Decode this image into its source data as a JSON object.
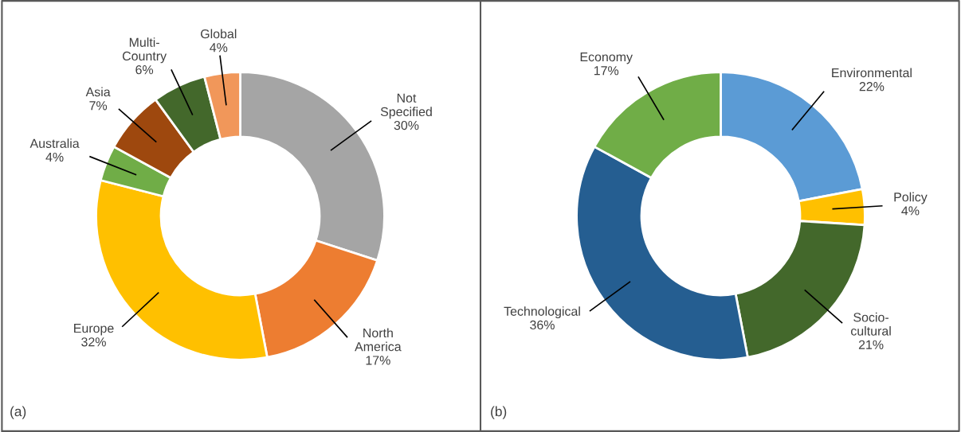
{
  "chart_data": [
    {
      "type": "donut",
      "categories": [
        "Not\nSpecified",
        "North\nAmerica",
        "Europe",
        "Australia",
        "Asia",
        "Multi-\nCountry",
        "Global"
      ],
      "values": [
        30,
        17,
        32,
        4,
        7,
        6,
        4
      ],
      "value_labels": [
        "30%",
        "17%",
        "32%",
        "4%",
        "7%",
        "6%",
        "4%"
      ],
      "colors": [
        "#a5a5a5",
        "#ed7d31",
        "#ffc000",
        "#70ad47",
        "#9e480e",
        "#43682b",
        "#f1975a"
      ],
      "annotations": [
        "(a)"
      ]
    },
    {
      "type": "donut",
      "categories": [
        "Environmental",
        "Policy",
        "Socio-\ncultural",
        "Technological",
        "Economy"
      ],
      "values": [
        22,
        4,
        21,
        36,
        17
      ],
      "value_labels": [
        "22%",
        "4%",
        "21%",
        "36%",
        "17%"
      ],
      "colors": [
        "#5b9bd5",
        "#ffc000",
        "#43682b",
        "#255e91",
        "#70ad47"
      ],
      "annotations": [
        "(b)"
      ]
    }
  ]
}
